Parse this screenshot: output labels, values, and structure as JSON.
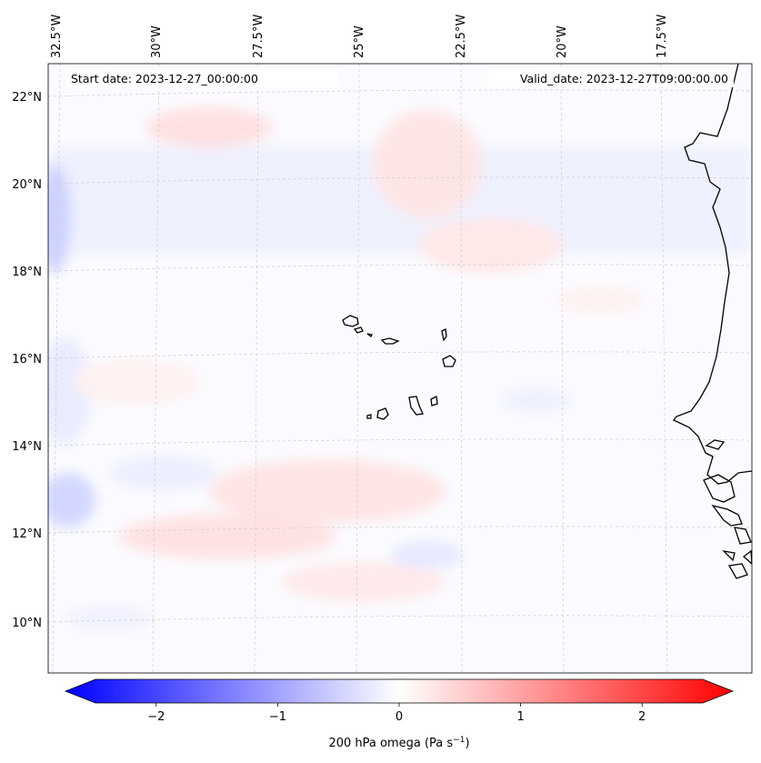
{
  "header": {
    "start_date": "Start date: 2023-12-27_00:00:00",
    "valid_date": "Valid_date: 2023-12-27T09:00:00.00"
  },
  "map": {
    "lon_labels": [
      "32.5°W",
      "30°W",
      "27.5°W",
      "25°W",
      "22.5°W",
      "20°W",
      "17.5°W"
    ],
    "lat_labels": [
      "22°N",
      "20°N",
      "18°N",
      "16°N",
      "14°N",
      "12°N",
      "10°N"
    ],
    "field": "200 hPa omega",
    "features": [
      "cape-verde-islands",
      "west-africa-coastline"
    ]
  },
  "colorbar": {
    "label_main": "200 hPa omega (Pa s",
    "label_sup": "−1",
    "label_close": ")",
    "ticks": [
      {
        "value": -2,
        "text": "−2"
      },
      {
        "value": -1,
        "text": "−1"
      },
      {
        "value": 0,
        "text": "0"
      },
      {
        "value": 1,
        "text": "1"
      },
      {
        "value": 2,
        "text": "2"
      }
    ],
    "range": [
      -2.5,
      2.5
    ],
    "colors": {
      "low": "#0000ff",
      "mid": "#ffffff",
      "high": "#ff0000"
    }
  }
}
